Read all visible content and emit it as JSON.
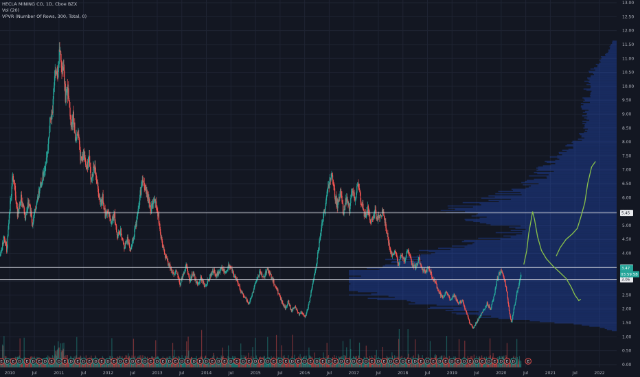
{
  "legend": {
    "symbol": "HECLA MINING CO, 1D, Cboe BZX",
    "volume": "Vol (20)",
    "vpvr": "VPVR (Number Of Rows, 300, Total, 0)"
  },
  "colors": {
    "background": "#131722",
    "grid": "#1f2433",
    "up": "#26a69a",
    "down": "#ef5350",
    "profile": "#2962ff",
    "level_line": "#d1d4dc",
    "projection": "#8bc34a",
    "price_tag": "#26a69a"
  },
  "chart_data": {
    "type": "candlestick",
    "yticks": [
      "13.00",
      "12.50",
      "12.00",
      "11.50",
      "11.00",
      "10.50",
      "10.00",
      "9.50",
      "9.00",
      "8.50",
      "8.00",
      "7.50",
      "7.00",
      "6.50",
      "6.00",
      "5.50",
      "5.00",
      "4.50",
      "4.00",
      "3.50",
      "3.00",
      "2.50",
      "2.00",
      "1.50",
      "1.00",
      "0.50",
      "0.00"
    ],
    "ylim": [
      -0.1,
      13.1
    ],
    "xlim": [
      2009.8,
      2022.35
    ],
    "xticks": [
      {
        "t": 2010.0,
        "label": "2010"
      },
      {
        "t": 2010.5,
        "label": "Jul"
      },
      {
        "t": 2011.0,
        "label": "2011"
      },
      {
        "t": 2011.5,
        "label": "Jul"
      },
      {
        "t": 2012.0,
        "label": "2012"
      },
      {
        "t": 2012.5,
        "label": "Jul"
      },
      {
        "t": 2013.0,
        "label": "2013"
      },
      {
        "t": 2013.5,
        "label": "Jul"
      },
      {
        "t": 2014.0,
        "label": "2014"
      },
      {
        "t": 2014.5,
        "label": "Jul"
      },
      {
        "t": 2015.0,
        "label": "2015"
      },
      {
        "t": 2015.5,
        "label": "Jul"
      },
      {
        "t": 2016.0,
        "label": "2016"
      },
      {
        "t": 2016.5,
        "label": "Jul"
      },
      {
        "t": 2017.0,
        "label": "2017"
      },
      {
        "t": 2017.5,
        "label": "Jul"
      },
      {
        "t": 2018.0,
        "label": "2018"
      },
      {
        "t": 2018.5,
        "label": "Jul"
      },
      {
        "t": 2019.0,
        "label": "2019"
      },
      {
        "t": 2019.5,
        "label": "Jul"
      },
      {
        "t": 2020.0,
        "label": "2020"
      },
      {
        "t": 2020.5,
        "label": "Jul"
      },
      {
        "t": 2021.0,
        "label": "2021"
      },
      {
        "t": 2021.5,
        "label": "Jul"
      },
      {
        "t": 2022.0,
        "label": "2022"
      }
    ],
    "price_path": [
      [
        2009.8,
        3.9
      ],
      [
        2009.87,
        4.6
      ],
      [
        2009.93,
        4.1
      ],
      [
        2010.0,
        5.8
      ],
      [
        2010.05,
        6.8
      ],
      [
        2010.1,
        6.2
      ],
      [
        2010.15,
        5.4
      ],
      [
        2010.22,
        6.0
      ],
      [
        2010.3,
        5.3
      ],
      [
        2010.38,
        5.9
      ],
      [
        2010.45,
        5.1
      ],
      [
        2010.52,
        5.6
      ],
      [
        2010.6,
        6.3
      ],
      [
        2010.68,
        6.9
      ],
      [
        2010.75,
        7.4
      ],
      [
        2010.8,
        8.6
      ],
      [
        2010.86,
        9.2
      ],
      [
        2010.92,
        10.8
      ],
      [
        2010.97,
        10.2
      ],
      [
        2011.0,
        11.5
      ],
      [
        2011.04,
        10.4
      ],
      [
        2011.08,
        10.9
      ],
      [
        2011.12,
        9.6
      ],
      [
        2011.18,
        9.9
      ],
      [
        2011.23,
        8.6
      ],
      [
        2011.28,
        8.9
      ],
      [
        2011.33,
        8.0
      ],
      [
        2011.38,
        8.2
      ],
      [
        2011.43,
        7.4
      ],
      [
        2011.5,
        7.6
      ],
      [
        2011.55,
        7.0
      ],
      [
        2011.6,
        7.5
      ],
      [
        2011.65,
        6.6
      ],
      [
        2011.72,
        7.2
      ],
      [
        2011.78,
        6.3
      ],
      [
        2011.83,
        5.7
      ],
      [
        2011.88,
        6.0
      ],
      [
        2011.94,
        5.3
      ],
      [
        2012.0,
        5.6
      ],
      [
        2012.05,
        5.1
      ],
      [
        2012.12,
        5.4
      ],
      [
        2012.18,
        4.6
      ],
      [
        2012.25,
        4.8
      ],
      [
        2012.32,
        4.2
      ],
      [
        2012.38,
        4.5
      ],
      [
        2012.45,
        4.1
      ],
      [
        2012.52,
        4.7
      ],
      [
        2012.58,
        5.2
      ],
      [
        2012.64,
        6.1
      ],
      [
        2012.7,
        6.6
      ],
      [
        2012.75,
        6.3
      ],
      [
        2012.8,
        6.0
      ],
      [
        2012.86,
        5.6
      ],
      [
        2012.93,
        5.9
      ],
      [
        2013.0,
        5.5
      ],
      [
        2013.05,
        4.8
      ],
      [
        2013.12,
        4.1
      ],
      [
        2013.2,
        3.7
      ],
      [
        2013.26,
        3.5
      ],
      [
        2013.32,
        3.2
      ],
      [
        2013.38,
        3.4
      ],
      [
        2013.45,
        2.9
      ],
      [
        2013.52,
        3.2
      ],
      [
        2013.58,
        3.6
      ],
      [
        2013.65,
        3.0
      ],
      [
        2013.72,
        3.3
      ],
      [
        2013.8,
        2.9
      ],
      [
        2013.88,
        3.1
      ],
      [
        2013.96,
        2.8
      ],
      [
        2014.05,
        3.1
      ],
      [
        2014.12,
        3.4
      ],
      [
        2014.2,
        3.2
      ],
      [
        2014.3,
        3.5
      ],
      [
        2014.38,
        3.3
      ],
      [
        2014.45,
        3.6
      ],
      [
        2014.55,
        3.2
      ],
      [
        2014.62,
        3.0
      ],
      [
        2014.7,
        2.6
      ],
      [
        2014.78,
        2.4
      ],
      [
        2014.86,
        2.2
      ],
      [
        2014.92,
        2.5
      ],
      [
        2015.0,
        3.0
      ],
      [
        2015.08,
        3.3
      ],
      [
        2015.15,
        3.1
      ],
      [
        2015.22,
        3.4
      ],
      [
        2015.3,
        3.2
      ],
      [
        2015.38,
        2.9
      ],
      [
        2015.45,
        2.6
      ],
      [
        2015.52,
        2.3
      ],
      [
        2015.6,
        2.0
      ],
      [
        2015.66,
        2.3
      ],
      [
        2015.72,
        1.9
      ],
      [
        2015.8,
        2.1
      ],
      [
        2015.87,
        1.8
      ],
      [
        2015.94,
        1.9
      ],
      [
        2016.0,
        1.7
      ],
      [
        2016.04,
        1.9
      ],
      [
        2016.1,
        2.4
      ],
      [
        2016.16,
        2.9
      ],
      [
        2016.22,
        3.5
      ],
      [
        2016.28,
        4.2
      ],
      [
        2016.34,
        5.0
      ],
      [
        2016.4,
        5.6
      ],
      [
        2016.45,
        6.2
      ],
      [
        2016.5,
        6.5
      ],
      [
        2016.55,
        6.8
      ],
      [
        2016.6,
        6.1
      ],
      [
        2016.66,
        5.7
      ],
      [
        2016.72,
        6.2
      ],
      [
        2016.78,
        5.4
      ],
      [
        2016.84,
        6.0
      ],
      [
        2016.9,
        5.6
      ],
      [
        2016.96,
        6.3
      ],
      [
        2017.02,
        6.0
      ],
      [
        2017.08,
        6.5
      ],
      [
        2017.15,
        5.8
      ],
      [
        2017.22,
        5.3
      ],
      [
        2017.28,
        5.6
      ],
      [
        2017.35,
        5.1
      ],
      [
        2017.42,
        5.5
      ],
      [
        2017.5,
        5.2
      ],
      [
        2017.58,
        5.5
      ],
      [
        2017.64,
        5.0
      ],
      [
        2017.72,
        4.2
      ],
      [
        2017.78,
        3.9
      ],
      [
        2017.84,
        4.1
      ],
      [
        2017.9,
        3.6
      ],
      [
        2017.96,
        3.9
      ],
      [
        2018.02,
        3.7
      ],
      [
        2018.1,
        4.1
      ],
      [
        2018.18,
        3.6
      ],
      [
        2018.25,
        3.5
      ],
      [
        2018.32,
        3.8
      ],
      [
        2018.38,
        3.4
      ],
      [
        2018.45,
        3.3
      ],
      [
        2018.52,
        3.5
      ],
      [
        2018.58,
        3.2
      ],
      [
        2018.66,
        2.9
      ],
      [
        2018.72,
        2.6
      ],
      [
        2018.8,
        2.4
      ],
      [
        2018.88,
        2.6
      ],
      [
        2018.96,
        2.3
      ],
      [
        2019.04,
        2.5
      ],
      [
        2019.12,
        2.2
      ],
      [
        2019.2,
        2.3
      ],
      [
        2019.28,
        1.9
      ],
      [
        2019.35,
        1.5
      ],
      [
        2019.42,
        1.3
      ],
      [
        2019.48,
        1.5
      ],
      [
        2019.55,
        1.7
      ],
      [
        2019.62,
        1.9
      ],
      [
        2019.7,
        2.2
      ],
      [
        2019.78,
        2.0
      ],
      [
        2019.86,
        2.6
      ],
      [
        2019.93,
        3.2
      ],
      [
        2020.0,
        3.4
      ],
      [
        2020.05,
        3.1
      ],
      [
        2020.1,
        2.7
      ],
      [
        2020.15,
        2.0
      ],
      [
        2020.2,
        1.5
      ],
      [
        2020.25,
        2.0
      ],
      [
        2020.3,
        2.5
      ],
      [
        2020.36,
        2.9
      ],
      [
        2020.4,
        3.3
      ]
    ],
    "volume_note": "volume histogram along bottom axis",
    "levels": [
      5.45,
      3.49,
      3.06
    ],
    "last_price": 3.47,
    "countdown": "03:59:58",
    "projection_upper": [
      [
        2020.46,
        3.6
      ],
      [
        2020.52,
        4.1
      ],
      [
        2020.56,
        4.7
      ],
      [
        2020.6,
        5.1
      ],
      [
        2020.64,
        5.5
      ],
      [
        2020.68,
        5.2
      ],
      [
        2020.74,
        4.6
      ],
      [
        2020.82,
        4.1
      ],
      [
        2020.92,
        3.8
      ],
      [
        2021.05,
        3.55
      ],
      [
        2021.2,
        3.3
      ],
      [
        2021.32,
        3.1
      ],
      [
        2021.42,
        2.8
      ],
      [
        2021.5,
        2.5
      ],
      [
        2021.58,
        2.3
      ],
      [
        2021.62,
        2.35
      ]
    ],
    "projection_lower": [
      [
        2021.12,
        3.9
      ],
      [
        2021.2,
        4.2
      ],
      [
        2021.32,
        4.5
      ],
      [
        2021.45,
        4.7
      ],
      [
        2021.55,
        4.9
      ],
      [
        2021.62,
        5.3
      ],
      [
        2021.7,
        5.8
      ],
      [
        2021.76,
        6.5
      ],
      [
        2021.84,
        7.1
      ],
      [
        2021.92,
        7.3
      ]
    ],
    "price_tags": [
      {
        "value": 5.45,
        "label": "5.45",
        "kind": "level"
      },
      {
        "value": 3.49,
        "label": "3.49",
        "kind": "level"
      },
      {
        "value": 3.47,
        "label": "3.47",
        "kind": "price"
      },
      {
        "value": 3.06,
        "label": "3.06",
        "kind": "level"
      }
    ],
    "event_markers": {
      "labels": [
        "E",
        "D"
      ],
      "times": [
        2009.83,
        2009.95,
        2010.07,
        2010.2,
        2010.35,
        2010.48,
        2010.6,
        2010.72,
        2010.85,
        2011.0,
        2011.12,
        2011.25,
        2011.38,
        2011.5,
        2011.62,
        2011.75,
        2011.87,
        2012.0,
        2012.12,
        2012.25,
        2012.37,
        2012.5,
        2012.62,
        2012.75,
        2012.87,
        2013.0,
        2013.12,
        2013.25,
        2013.37,
        2013.5,
        2013.62,
        2013.75,
        2013.87,
        2014.0,
        2014.12,
        2014.25,
        2014.37,
        2014.5,
        2014.62,
        2014.75,
        2014.87,
        2015.0,
        2015.12,
        2015.25,
        2015.37,
        2015.5,
        2015.62,
        2015.75,
        2015.87,
        2016.0,
        2016.12,
        2016.25,
        2016.37,
        2016.5,
        2016.62,
        2016.75,
        2016.87,
        2017.0,
        2017.12,
        2017.25,
        2017.37,
        2017.5,
        2017.62,
        2017.75,
        2017.87,
        2018.0,
        2018.12,
        2018.25,
        2018.37,
        2018.5,
        2018.62,
        2018.75,
        2018.87,
        2019.0,
        2019.12,
        2019.25,
        2019.37,
        2019.5,
        2019.62,
        2019.75,
        2019.87,
        2020.0,
        2020.12,
        2020.25,
        2020.55
      ]
    }
  }
}
